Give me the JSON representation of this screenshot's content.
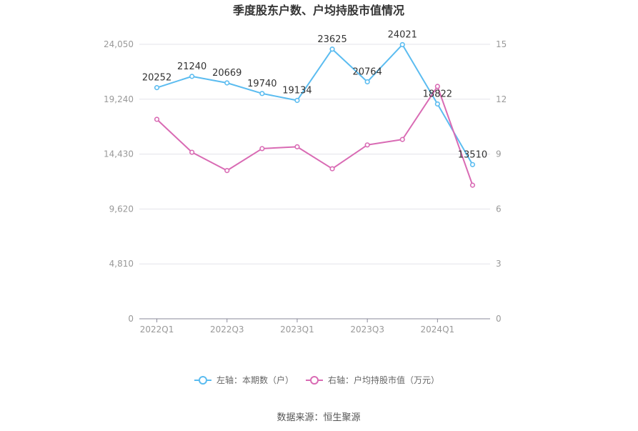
{
  "chart_data": {
    "type": "line",
    "title": "季度股东户数、户均持股市值情况",
    "categories": [
      "2022Q1",
      "2022Q2",
      "2022Q3",
      "2022Q4",
      "2023Q1",
      "2023Q2",
      "2023Q3",
      "2023Q4",
      "2024Q1",
      "2024Q2"
    ],
    "x_tick_labels": [
      "2022Q1",
      "2022Q3",
      "2023Q1",
      "2023Q3",
      "2024Q1"
    ],
    "left_axis": {
      "ticks": [
        "0",
        "4,810",
        "9,620",
        "14,430",
        "19,240",
        "24,050"
      ],
      "ylim": [
        0,
        24050
      ]
    },
    "right_axis": {
      "ticks": [
        "0",
        "3",
        "6",
        "9",
        "12",
        "15"
      ],
      "ylim": [
        0,
        15
      ]
    },
    "series": [
      {
        "name": "左轴：本期数（户）",
        "axis": "left",
        "color": "#5bbcf0",
        "values": [
          20252,
          21240,
          20669,
          19740,
          19134,
          23625,
          20764,
          24021,
          18822,
          13510
        ],
        "labels": [
          "20252",
          "21240",
          "20669",
          "19740",
          "19134",
          "23625",
          "20764",
          "24021",
          "18822",
          "13510"
        ]
      },
      {
        "name": "右轴：户均持股市值（万元）",
        "axis": "right",
        "color": "#d96bb4",
        "values": [
          10.9,
          9.1,
          8.1,
          9.3,
          9.4,
          8.2,
          9.5,
          9.8,
          12.7,
          7.3
        ]
      }
    ],
    "legend_position": "bottom",
    "grid": true
  },
  "footer": {
    "source": "数据来源：恒生聚源"
  }
}
